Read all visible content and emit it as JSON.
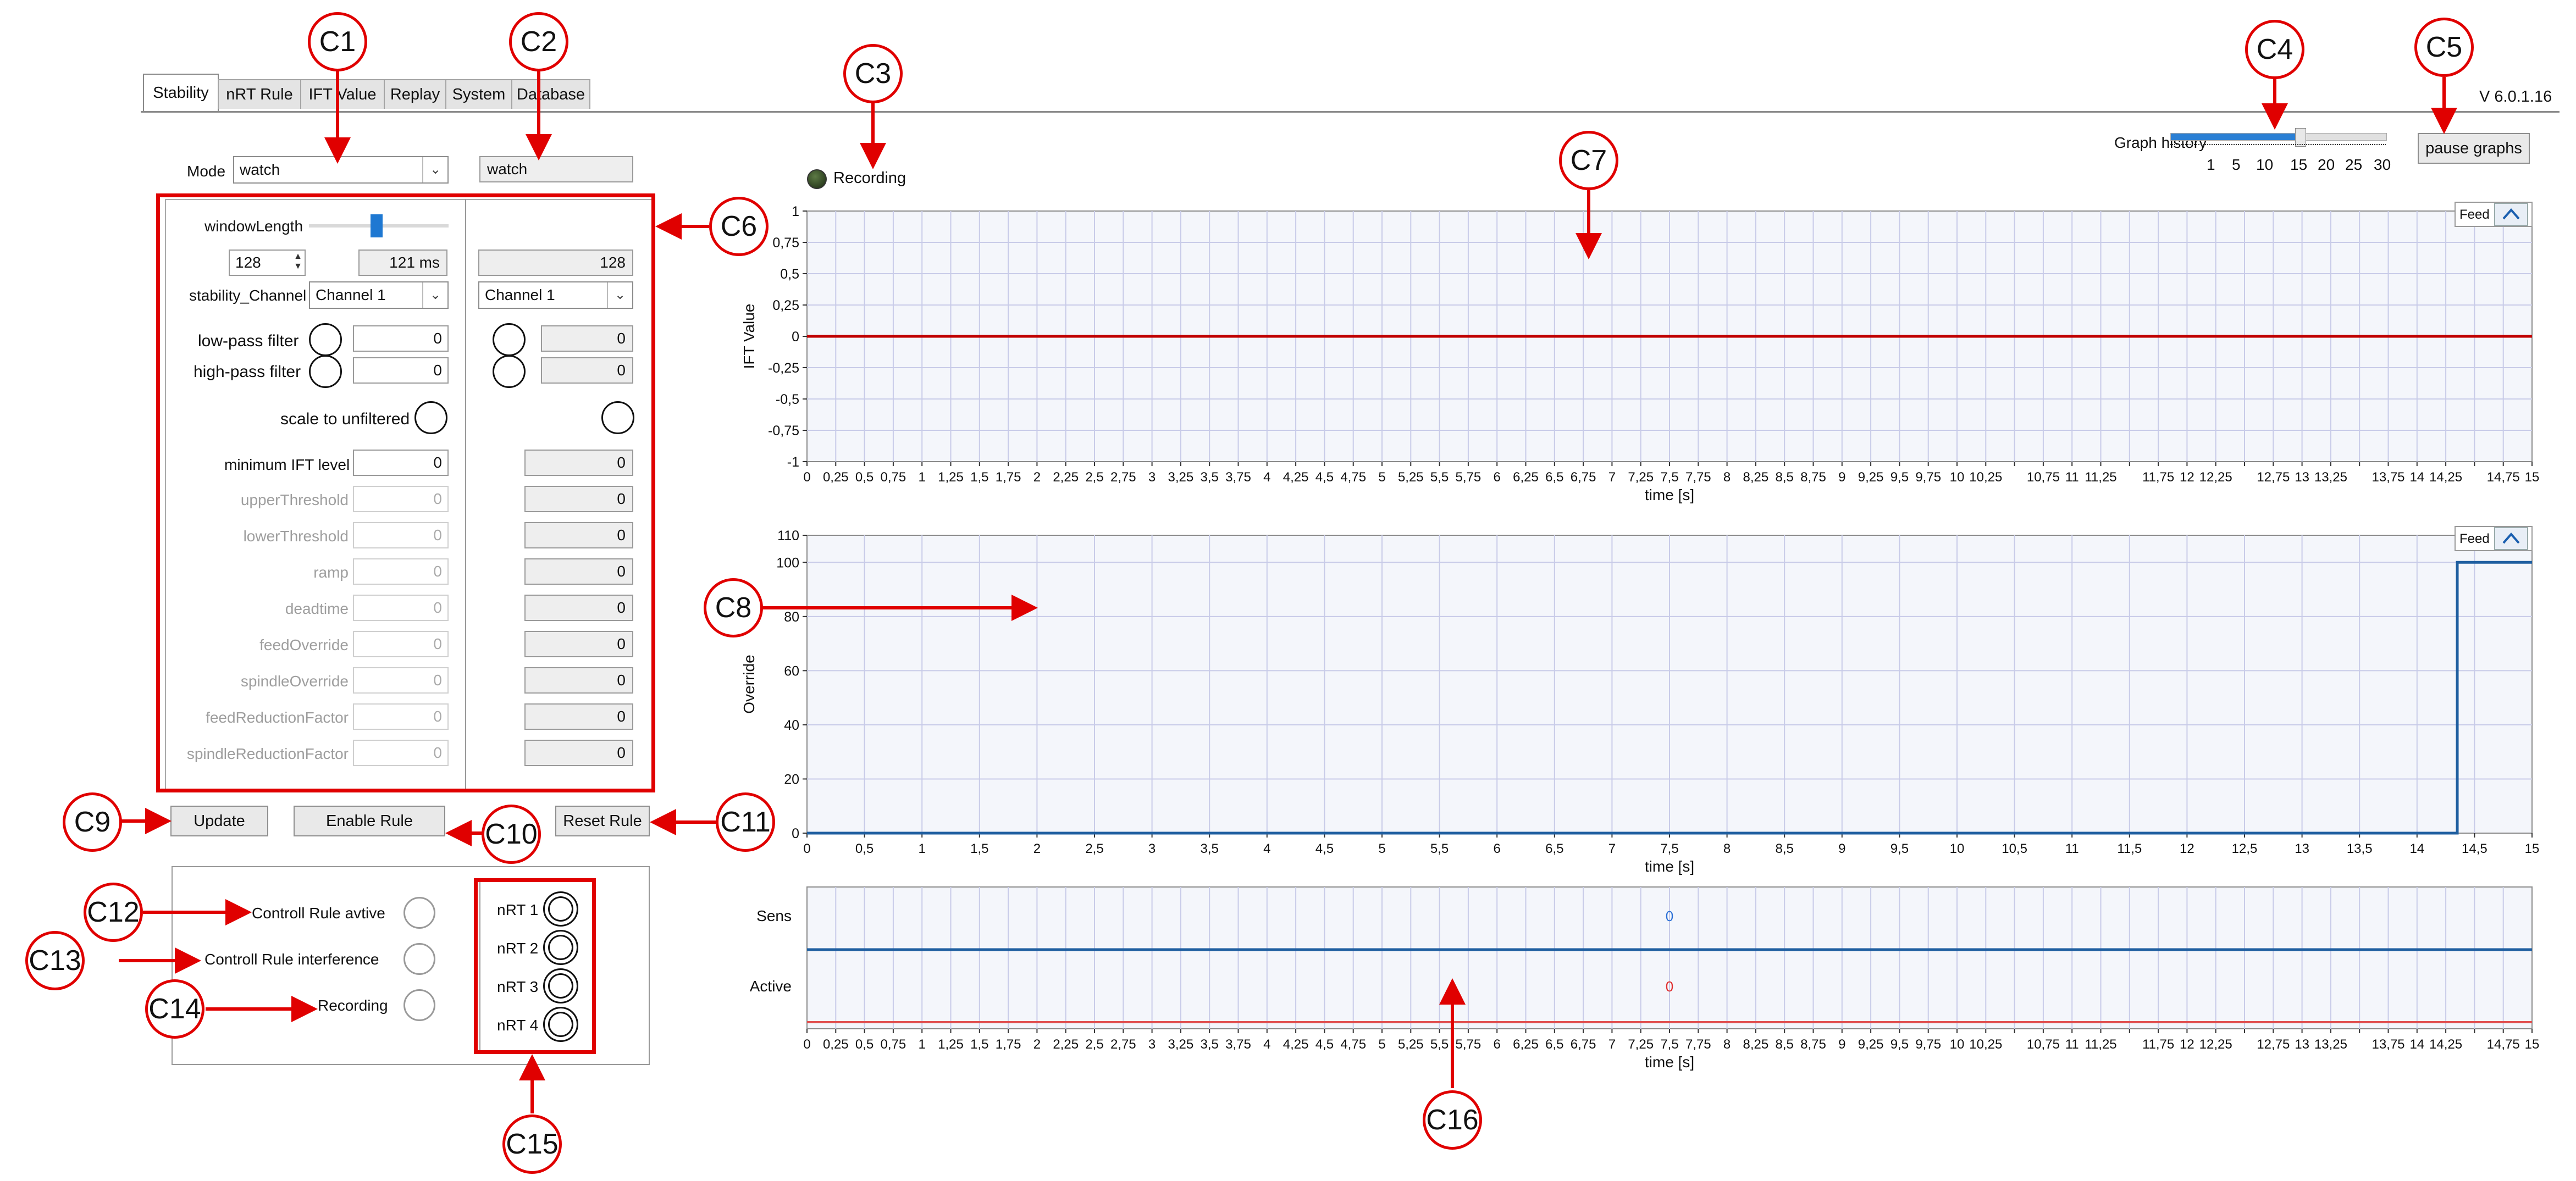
{
  "tabs": [
    "Stability",
    "nRT Rule",
    "IFT Value",
    "Replay",
    "System",
    "Database"
  ],
  "version": "V   6.0.1.16",
  "mode": {
    "label": "Mode",
    "value": "watch",
    "right_value": "watch"
  },
  "recording_indicator": "Recording",
  "graph_history": {
    "label": "Graph history",
    "ticks": [
      "1",
      "5",
      "10",
      "15",
      "20",
      "25",
      "30"
    ],
    "value": 15
  },
  "pause_button": "pause graphs",
  "settings": {
    "window_length_label": "windowLength",
    "window_length_slider": 0.5,
    "window_samples": "128",
    "window_ms": "121 ms",
    "window_samples_right": "128",
    "channel_label": "stability_Channel",
    "channel_value": "Channel 1",
    "channel_value_right": "Channel 1",
    "low_pass_label": "low-pass filter",
    "low_pass_value": "0",
    "low_pass_right": "0",
    "high_pass_label": "high-pass filter",
    "high_pass_value": "0",
    "high_pass_right": "0",
    "scale_label": "scale to unfiltered",
    "min_ift_label": "minimum IFT level",
    "min_ift_value": "0",
    "min_ift_right": "0",
    "disabled_rows": [
      {
        "label": "upperThreshold",
        "value": "0",
        "right": "0"
      },
      {
        "label": "lowerThreshold",
        "value": "0",
        "right": "0"
      },
      {
        "label": "ramp",
        "value": "0",
        "right": "0"
      },
      {
        "label": "deadtime",
        "value": "0",
        "right": "0"
      },
      {
        "label": "feedOverride",
        "value": "0",
        "right": "0"
      },
      {
        "label": "spindleOverride",
        "value": "0",
        "right": "0"
      },
      {
        "label": "feedReductionFactor",
        "value": "0",
        "right": "0"
      },
      {
        "label": "spindleReductionFactor",
        "value": "0",
        "right": "0"
      }
    ]
  },
  "buttons": {
    "update": "Update",
    "enable_rule": "Enable Rule",
    "reset_rule": "Reset Rule"
  },
  "status": {
    "controll_active": "Controll Rule avtive",
    "controll_interference": "Controll Rule interference",
    "recording": "Recording",
    "nrt": [
      "nRT 1",
      "nRT 2",
      "nRT 3",
      "nRT 4"
    ]
  },
  "callouts": [
    "C1",
    "C2",
    "C3",
    "C4",
    "C5",
    "C6",
    "C7",
    "C8",
    "C9",
    "C10",
    "C11",
    "C12",
    "C13",
    "C14",
    "C15",
    "C16"
  ],
  "colors": {
    "annotation": "#e00000",
    "ift_line": "#c00000",
    "override_line": "#1f5fa0",
    "grid": "#c8cbe8",
    "plot_bg": "#f4f6fb"
  },
  "chart_data": [
    {
      "type": "line",
      "ylabel": "IFT Value",
      "xlabel": "time [s]",
      "xlim": [
        0,
        15
      ],
      "ylim": [
        -1,
        1
      ],
      "yticks": [
        "1",
        "0,75",
        "0,5",
        "0,25",
        "0",
        "-0,25",
        "-0,5",
        "-0,75",
        "-1"
      ],
      "xticks": [
        "0",
        "0,25",
        "0,5",
        "0,75",
        "1",
        "1,25",
        "1,5",
        "1,75",
        "2",
        "2,25",
        "2,5",
        "2,75",
        "3",
        "3,25",
        "3,5",
        "3,75",
        "4",
        "4,25",
        "4,5",
        "4,75",
        "5",
        "5,25",
        "5,5",
        "5,75",
        "6",
        "6,25",
        "6,5",
        "6,75",
        "7",
        "7,25",
        "7,5",
        "7,75",
        "8",
        "8,25",
        "8,5",
        "8,75",
        "9",
        "9,25",
        "9,5",
        "9,75",
        "10",
        "10,25",
        "",
        "10,75",
        "11",
        "11,25",
        "",
        "11,75",
        "12",
        "12,25",
        "",
        "12,75",
        "13",
        "13,25",
        "",
        "13,75",
        "14",
        "14,25",
        "",
        "14,75",
        "15"
      ],
      "legend_label": "Feed",
      "series": [
        {
          "x": [
            0,
            15
          ],
          "y": [
            0,
            0
          ]
        }
      ]
    },
    {
      "type": "line",
      "ylabel": "Override",
      "xlabel": "time [s]",
      "xlim": [
        0,
        15
      ],
      "ylim": [
        0,
        110
      ],
      "yticks": [
        "110",
        "100",
        "80",
        "60",
        "40",
        "20",
        "0"
      ],
      "xticks": [
        "0",
        "0,5",
        "1",
        "1,5",
        "2",
        "2,5",
        "3",
        "3,5",
        "4",
        "4,5",
        "5",
        "5,5",
        "6",
        "6,5",
        "7",
        "7,5",
        "8",
        "8,5",
        "9",
        "9,5",
        "10",
        "10,5",
        "11",
        "11,5",
        "12",
        "12,5",
        "13",
        "13,5",
        "14",
        "14,5",
        "15"
      ],
      "legend_label": "Feed",
      "series": [
        {
          "x": [
            0,
            14.35,
            14.35,
            15
          ],
          "y": [
            0,
            0,
            100,
            100
          ]
        }
      ]
    },
    {
      "type": "line",
      "xlabel": "time [s]",
      "xlim": [
        0,
        15
      ],
      "row_labels": [
        "Sens",
        "Active"
      ],
      "value_labels": [
        "0",
        "0"
      ],
      "xticks": [
        "0",
        "0,25",
        "0,5",
        "0,75",
        "1",
        "1,25",
        "1,5",
        "1,75",
        "2",
        "2,25",
        "2,5",
        "2,75",
        "3",
        "3,25",
        "3,5",
        "3,75",
        "4",
        "4,25",
        "4,5",
        "4,75",
        "5",
        "5,25",
        "5,5",
        "5,75",
        "6",
        "6,25",
        "6,5",
        "6,75",
        "7",
        "7,25",
        "7,5",
        "7,75",
        "8",
        "8,25",
        "8,5",
        "8,75",
        "9",
        "9,25",
        "9,5",
        "9,75",
        "10",
        "10,25",
        "",
        "10,75",
        "11",
        "11,25",
        "",
        "11,75",
        "12",
        "12,25",
        "",
        "12,75",
        "13",
        "13,25",
        "",
        "13,75",
        "14",
        "14,25",
        "",
        "14,75",
        "15"
      ]
    }
  ]
}
